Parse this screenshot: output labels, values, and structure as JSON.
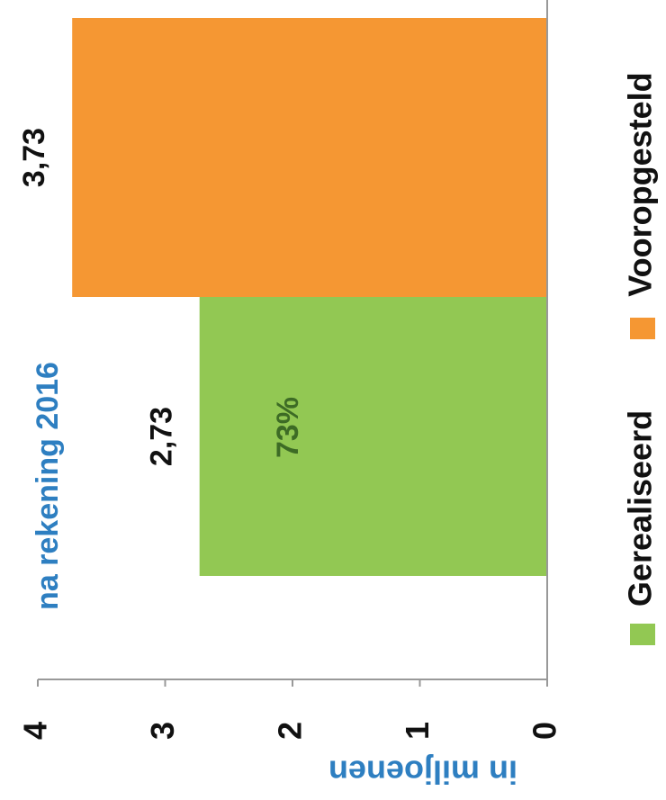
{
  "chart_data": {
    "type": "bar",
    "subtitle": "na rekening 2016",
    "ylabel": "in miljoenen",
    "orientation": "rotated",
    "series": [
      {
        "name": "Gerealiseerd",
        "color": "#92c853",
        "values": [
          2.73
        ],
        "value_labels": [
          "2,73"
        ]
      },
      {
        "name": "Vooropgesteld",
        "color": "#f59733",
        "values": [
          3.73
        ],
        "value_labels": [
          "3,73"
        ]
      }
    ],
    "annotation": "73%",
    "ylim": [
      0,
      4
    ],
    "yticks": [
      0,
      1,
      2,
      3,
      4
    ]
  }
}
